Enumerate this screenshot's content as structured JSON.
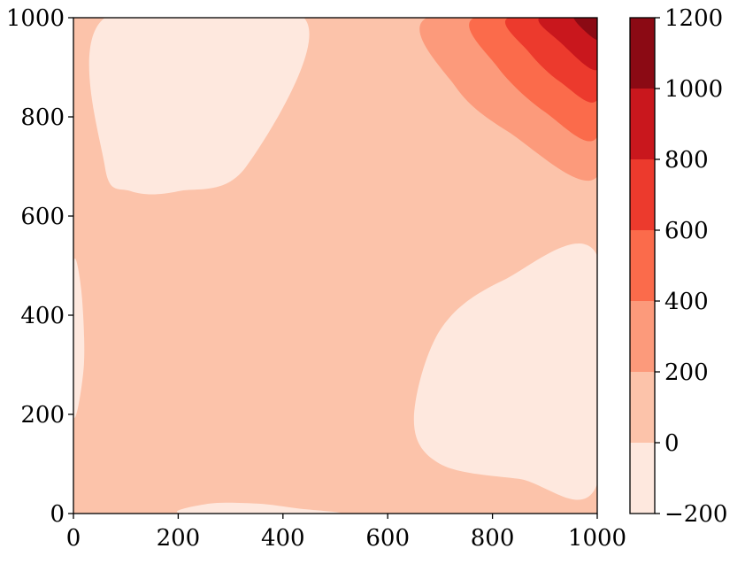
{
  "chart_data": {
    "type": "contourf",
    "title": "",
    "xlabel": "",
    "ylabel": "",
    "xlim": [
      0,
      1000
    ],
    "ylim": [
      0,
      1000
    ],
    "x_ticks": [
      0,
      200,
      400,
      600,
      800,
      1000
    ],
    "y_ticks": [
      0,
      200,
      400,
      600,
      800,
      1000
    ],
    "x_tick_labels": [
      "0",
      "200",
      "400",
      "600",
      "800",
      "1000"
    ],
    "y_tick_labels": [
      "0",
      "200",
      "400",
      "600",
      "800",
      "1000"
    ],
    "grid": false,
    "colormap": "Reds",
    "colorbar": {
      "levels": [
        -200,
        0,
        200,
        400,
        600,
        800,
        1000,
        1200
      ],
      "tick_labels": [
        "−200",
        "0",
        "200",
        "400",
        "600",
        "800",
        "1000",
        "1200"
      ],
      "colors": [
        "#fee8de",
        "#fcc3aa",
        "#fc9a7b",
        "#fb6b4b",
        "#ec3a2d",
        "#c9171d",
        "#8b0a14"
      ]
    },
    "regions": [
      {
        "band": 0,
        "level_range": [
          -200,
          0
        ],
        "boundary": [
          [
            60,
            1000
          ],
          [
            60,
            700
          ],
          [
            110,
            650
          ],
          [
            200,
            650
          ],
          [
            330,
            700
          ],
          [
            440,
            1000
          ]
        ]
      },
      {
        "band": 0,
        "level_range": [
          -200,
          0
        ],
        "boundary": [
          [
            0,
            500
          ],
          [
            15,
            450
          ],
          [
            20,
            300
          ],
          [
            0,
            200
          ]
        ]
      },
      {
        "band": 0,
        "level_range": [
          -200,
          0
        ],
        "boundary": [
          [
            210,
            0
          ],
          [
            260,
            20
          ],
          [
            350,
            20
          ],
          [
            430,
            10
          ],
          [
            500,
            0
          ]
        ]
      },
      {
        "band": 0,
        "level_range": [
          -200,
          0
        ],
        "boundary": [
          [
            1000,
            520
          ],
          [
            820,
            470
          ],
          [
            700,
            370
          ],
          [
            650,
            190
          ],
          [
            700,
            100
          ],
          [
            850,
            70
          ],
          [
            1000,
            60
          ]
        ]
      },
      {
        "band": 2,
        "level_range": [
          200,
          400
        ],
        "boundary": [
          [
            675,
            1000
          ],
          [
            730,
            860
          ],
          [
            830,
            770
          ],
          [
            1000,
            680
          ],
          [
            1000,
            1000
          ]
        ]
      },
      {
        "band": 3,
        "level_range": [
          400,
          600
        ],
        "boundary": [
          [
            765,
            1000
          ],
          [
            810,
            900
          ],
          [
            900,
            810
          ],
          [
            1000,
            760
          ],
          [
            1000,
            1000
          ]
        ]
      },
      {
        "band": 4,
        "level_range": [
          600,
          800
        ],
        "boundary": [
          [
            830,
            1000
          ],
          [
            870,
            930
          ],
          [
            930,
            870
          ],
          [
            1000,
            835
          ],
          [
            1000,
            1000
          ]
        ]
      },
      {
        "band": 5,
        "level_range": [
          800,
          1000
        ],
        "boundary": [
          [
            890,
            1000
          ],
          [
            930,
            950
          ],
          [
            1000,
            895
          ],
          [
            1000,
            1000
          ]
        ]
      },
      {
        "band": 6,
        "level_range": [
          1000,
          1200
        ],
        "boundary": [
          [
            955,
            1000
          ],
          [
            1000,
            955
          ],
          [
            1000,
            1000
          ]
        ]
      }
    ]
  }
}
